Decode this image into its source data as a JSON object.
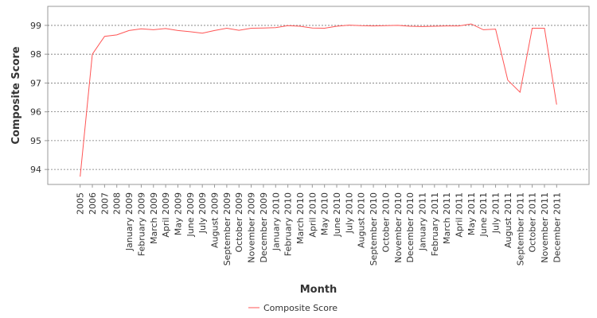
{
  "chart_data": {
    "type": "line",
    "x_label": "Month",
    "y_label": "Composite Score",
    "categories": [
      "2005",
      "2006",
      "2007",
      "2008",
      "January 2009",
      "February 2009",
      "March 2009",
      "April 2009",
      "May 2009",
      "June 2009",
      "July 2009",
      "August 2009",
      "September 2009",
      "October 2009",
      "November 2009",
      "December 2009",
      "January 2010",
      "February 2010",
      "March 2010",
      "April 2010",
      "May 2010",
      "June 2010",
      "July 2010",
      "August 2010",
      "September 2010",
      "October 2010",
      "November 2010",
      "December 2010",
      "January 2011",
      "February 2011",
      "March 2011",
      "April 2011",
      "May 2011",
      "June 2011",
      "July 2011",
      "August 2011",
      "September 2011",
      "October 2011",
      "November 2011",
      "December 2011"
    ],
    "series": [
      {
        "name": "Composite Score",
        "color": "#ff5555",
        "values": [
          93.75,
          98.0,
          98.62,
          98.67,
          98.82,
          98.88,
          98.85,
          98.89,
          98.82,
          98.78,
          98.73,
          98.82,
          98.9,
          98.83,
          98.9,
          98.91,
          98.92,
          98.99,
          98.97,
          98.91,
          98.9,
          98.97,
          99.01,
          98.99,
          98.98,
          98.99,
          99.0,
          98.97,
          98.96,
          98.97,
          98.98,
          98.98,
          99.05,
          98.85,
          98.87,
          97.1,
          96.68,
          98.9,
          98.9,
          96.25
        ]
      }
    ],
    "ylim": [
      93.48,
      99.66
    ],
    "yticks": [
      94,
      95,
      96,
      97,
      98,
      99
    ],
    "grid": true,
    "legend": "bottom"
  }
}
